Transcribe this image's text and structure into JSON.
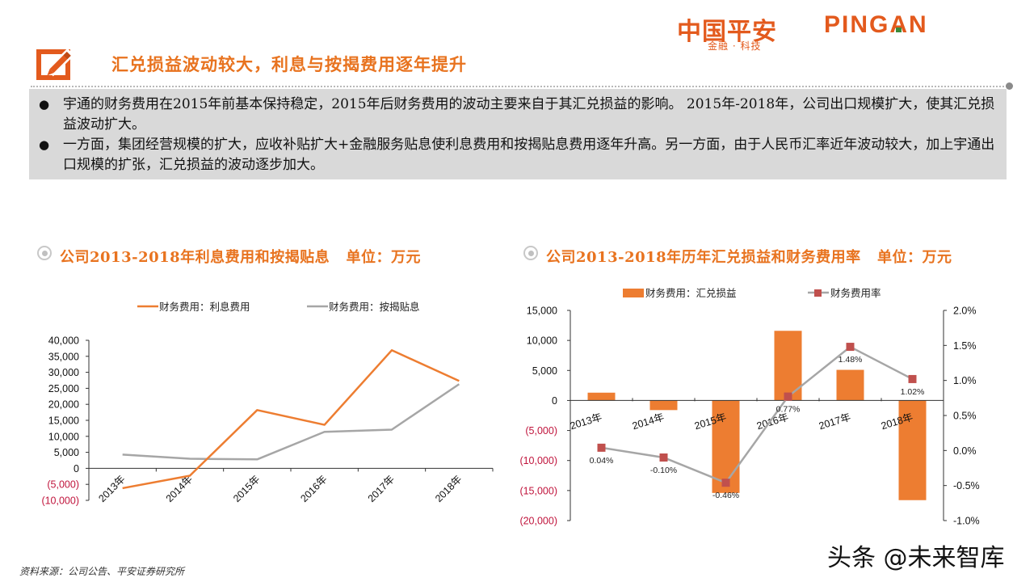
{
  "header": {
    "logo_cn": "中国平安",
    "logo_en": "PINGAN",
    "logo_tagline": "金融 · 科技",
    "title": "汇兑损益波动较大，利息与按揭费用逐年提升",
    "title_icon": "edit-pencil-icon"
  },
  "summary": {
    "bullets": [
      "宇通的财务费用在2015年前基本保持稳定，2015年后财务费用的波动主要来自于其汇兑损益的影响。 2015年-2018年，公司出口规模扩大，使其汇兑损益波动扩大。",
      "一方面，集团经营规模的扩大，应收补贴扩大+金融服务贴息使利息费用和按揭贴息费用逐年升高。另一方面，由于人民币汇率近年波动较大，加上宇通出口规模的扩张，汇兑损益的波动逐步加大。"
    ]
  },
  "colors": {
    "brand_orange": "#e35a1d",
    "title_orange": "#e8731f",
    "bar_orange": "#ed7d31",
    "line_gray": "#a6a6a6",
    "marker_red": "#c0504d",
    "negative_red": "#c0143c",
    "panel_gray": "#d9d9d9"
  },
  "chart_data": [
    {
      "type": "line",
      "title": "公司2013-2018年利息费用和按揭贴息   单位：万元",
      "categories": [
        "2013年",
        "2014年",
        "2015年",
        "2016年",
        "2017年",
        "2018年"
      ],
      "series": [
        {
          "name": "财务费用：利息费用",
          "color": "#ed7d31",
          "values": [
            -6200,
            -2300,
            18200,
            13600,
            36900,
            27300
          ]
        },
        {
          "name": "财务费用：按揭贴息",
          "color": "#a6a6a6",
          "values": [
            4300,
            3000,
            2800,
            11400,
            12100,
            26300
          ]
        }
      ],
      "yticks": [
        "40,000",
        "35,000",
        "30,000",
        "25,000",
        "20,000",
        "15,000",
        "10,000",
        "5,000",
        "0",
        "(5,000)",
        "(10,000)"
      ],
      "ylim": [
        -10000,
        40000
      ],
      "xlabel": "",
      "ylabel": "",
      "grid": false,
      "legend_position": "top"
    },
    {
      "type": "bar",
      "title": "公司2013-2018年历年汇兑损益和财务费用率   单位：万元",
      "categories": [
        "2013年",
        "2014年",
        "2015年",
        "2016年",
        "2017年",
        "2018年"
      ],
      "series": [
        {
          "name": "财务费用：汇兑损益",
          "type": "bar",
          "axis": "left",
          "color": "#ed7d31",
          "values": [
            1300,
            -1600,
            -15400,
            11600,
            5100,
            -16600
          ]
        },
        {
          "name": "财务费用率",
          "type": "line",
          "axis": "right",
          "color": "#a6a6a6",
          "marker_color": "#c0504d",
          "values": [
            0.04,
            -0.1,
            -0.46,
            0.77,
            1.48,
            1.02
          ],
          "labels": [
            "0.04%",
            "-0.10%",
            "-0.46%",
            "0.77%",
            "1.48%",
            "1.02%"
          ]
        }
      ],
      "yticks_left": [
        "15,000",
        "10,000",
        "5,000",
        "0",
        "(5,000)",
        "(10,000)",
        "(15,000)",
        "(20,000)"
      ],
      "yticks_right": [
        "2.0%",
        "1.5%",
        "1.0%",
        "0.5%",
        "0.0%",
        "-0.5%",
        "-1.0%"
      ],
      "ylim_left": [
        -20000,
        15000
      ],
      "ylim_right": [
        -1.0,
        2.0
      ],
      "xlabel": "",
      "ylabel": "",
      "grid": false,
      "legend_position": "top"
    }
  ],
  "footer": {
    "source": "资料来源：公司公告、平安证券研究所",
    "watermark": "头条 @未来智库"
  }
}
